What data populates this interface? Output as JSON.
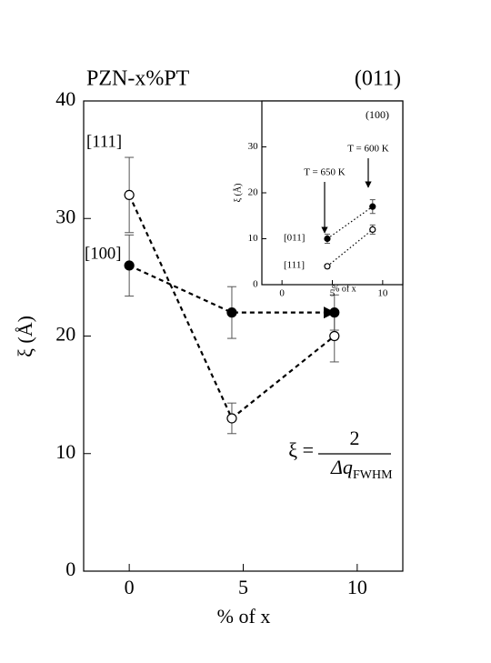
{
  "chart_data": [
    {
      "type": "line",
      "title": "PZN-x%PT",
      "subtitle": "(011)",
      "xlabel": "% of x",
      "ylabel": "ξ (Å)",
      "xlim": [
        -2,
        12
      ],
      "xticks": [
        0,
        5,
        10
      ],
      "ylim": [
        0,
        40
      ],
      "yticks": [
        0,
        10,
        20,
        30,
        40
      ],
      "series": [
        {
          "name": "[111]",
          "color": "#000000",
          "marker": "open",
          "x": [
            0,
            4.5,
            9
          ],
          "values": [
            32,
            13,
            20
          ],
          "errors": [
            3.2,
            1.3,
            2.2
          ]
        },
        {
          "name": "[100]",
          "color": "#000000",
          "marker": "filled",
          "x": [
            0,
            4.5,
            9
          ],
          "values": [
            26,
            22,
            22
          ],
          "errors": [
            2.6,
            2.2,
            1.5
          ]
        }
      ],
      "formula": {
        "lhs": "ξ =",
        "numerator": "2",
        "denominator": "Δq",
        "subscript": "FWHM"
      }
    },
    {
      "type": "line",
      "title": "(100)",
      "xlabel": "% of x",
      "ylabel": "ξ (Å)",
      "xlim": [
        -2,
        12
      ],
      "xticks": [
        0,
        5,
        10
      ],
      "ylim": [
        0,
        40
      ],
      "yticks": [
        0,
        10,
        20,
        30
      ],
      "series": [
        {
          "name": "[011]",
          "color": "#000000",
          "marker": "filled",
          "x": [
            4.5,
            9
          ],
          "values": [
            10,
            17
          ],
          "errors": [
            1,
            1.5
          ]
        },
        {
          "name": "[111]",
          "color": "#000000",
          "marker": "open",
          "x": [
            4.5,
            9
          ],
          "values": [
            4,
            12
          ],
          "errors": [
            0.4,
            1
          ]
        }
      ],
      "annotations": [
        "T = 650 K",
        "T = 600 K"
      ]
    }
  ]
}
